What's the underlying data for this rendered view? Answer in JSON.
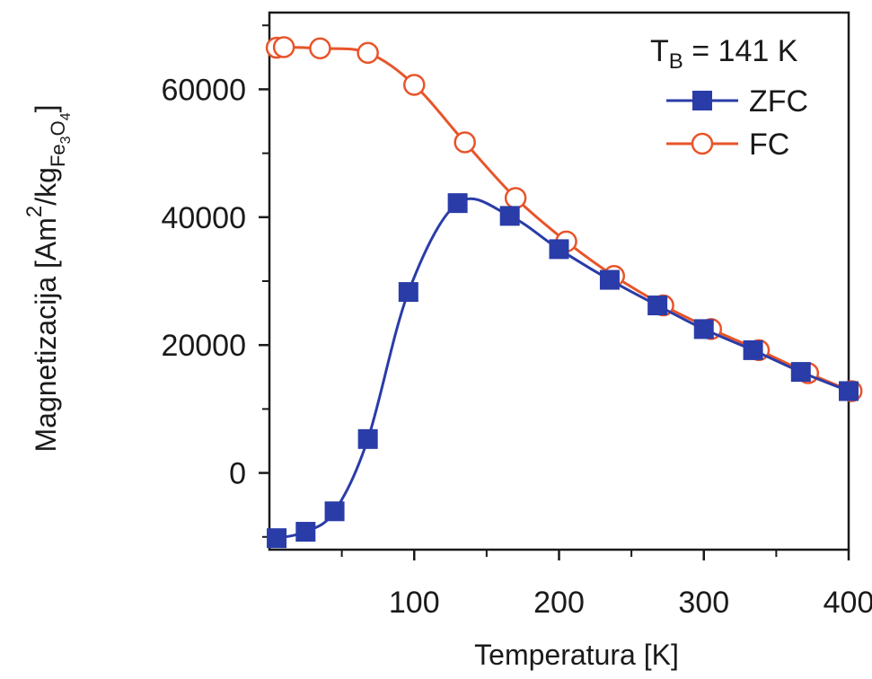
{
  "chart_data": {
    "type": "line",
    "xlabel": "Temperatura  [K]",
    "ylabel": {
      "main": "Magnetizacija  [Am",
      "sup": "2",
      "unit": "/kg",
      "sub_base": "Fe",
      "sub_3": "3",
      "sub_o": "O",
      "sub_4": "4",
      "close": "]"
    },
    "xlim": [
      0,
      400
    ],
    "ylim": [
      -12000,
      72000
    ],
    "x_ticks": [
      100,
      200,
      300,
      400
    ],
    "x_minor_ticks": [
      50,
      150,
      250,
      350
    ],
    "y_ticks": [
      0,
      20000,
      40000,
      60000
    ],
    "y_minor_ticks": [
      -10000,
      10000,
      30000,
      50000,
      70000
    ],
    "x_tick_labels": [
      "100",
      "200",
      "300",
      "400"
    ],
    "y_tick_labels": [
      "0",
      "20000",
      "40000",
      "60000"
    ],
    "annotation": {
      "main": "T",
      "sub": "B",
      "rest": " = 141 K"
    },
    "legend_position": "top-right",
    "series": [
      {
        "name": "ZFC",
        "color": "#2a3ca8",
        "marker": "filled-square",
        "x": [
          5,
          25,
          45,
          68,
          96,
          130,
          166,
          200,
          235,
          268,
          300,
          334,
          367,
          400
        ],
        "y": [
          -10200,
          -9200,
          -6000,
          5300,
          28300,
          42200,
          40200,
          35000,
          30200,
          26200,
          22500,
          19200,
          15800,
          12800
        ]
      },
      {
        "name": "FC",
        "color": "#e8542a",
        "marker": "open-circle",
        "x": [
          5,
          10,
          35,
          68,
          100,
          135,
          170,
          205,
          238,
          272,
          305,
          338,
          372,
          402
        ],
        "y": [
          66500,
          66600,
          66400,
          65700,
          60700,
          51700,
          43000,
          36200,
          30800,
          26200,
          22500,
          19200,
          15600,
          12800
        ]
      }
    ]
  }
}
